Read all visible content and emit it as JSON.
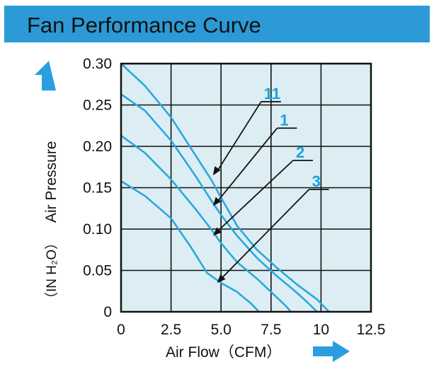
{
  "header": {
    "title": "Fan Performance Curve"
  },
  "colors": {
    "header_bg": "#2b9ad6",
    "curve": "#2aa7df",
    "plot_bg": "#dceef3",
    "label": "#1aa3e0",
    "arrow": "#2a9ee0"
  },
  "icons": {
    "y_axis_arrow": "arrow-up-icon",
    "x_axis_arrow": "arrow-right-icon"
  },
  "chart_data": {
    "type": "line",
    "ylabel": "Air Pressure",
    "ylabel_unit": "（IN H₂O）",
    "xlabel": "Air Flow（CFM）",
    "xlim": [
      0,
      12.5
    ],
    "ylim": [
      0,
      0.3
    ],
    "x_ticks": [
      "0",
      "2.5",
      "5.0",
      "7.5",
      "10",
      "12.5"
    ],
    "y_ticks": [
      "0",
      "0.05",
      "0.10",
      "0.15",
      "0.20",
      "0.25",
      "0.30"
    ],
    "x_tick_values": [
      0,
      2.5,
      5.0,
      7.5,
      10,
      12.5
    ],
    "y_tick_values": [
      0,
      0.05,
      0.1,
      0.15,
      0.2,
      0.25,
      0.3
    ],
    "grid": true,
    "series": [
      {
        "name": "11",
        "points": [
          [
            0,
            0.3
          ],
          [
            1.2,
            0.273
          ],
          [
            2.5,
            0.235
          ],
          [
            3.7,
            0.19
          ],
          [
            4.5,
            0.16
          ],
          [
            5.0,
            0.138
          ],
          [
            5.8,
            0.104
          ],
          [
            6.8,
            0.075
          ],
          [
            7.8,
            0.053
          ],
          [
            8.8,
            0.033
          ],
          [
            9.8,
            0.015
          ],
          [
            10.4,
            0
          ]
        ]
      },
      {
        "name": "1",
        "points": [
          [
            0,
            0.263
          ],
          [
            1.2,
            0.243
          ],
          [
            2.5,
            0.207
          ],
          [
            3.7,
            0.165
          ],
          [
            4.5,
            0.135
          ],
          [
            5.0,
            0.117
          ],
          [
            5.8,
            0.092
          ],
          [
            6.8,
            0.065
          ],
          [
            7.8,
            0.043
          ],
          [
            8.6,
            0.027
          ],
          [
            9.3,
            0.012
          ],
          [
            9.8,
            0
          ]
        ]
      },
      {
        "name": "2",
        "points": [
          [
            0,
            0.213
          ],
          [
            1.2,
            0.192
          ],
          [
            2.5,
            0.16
          ],
          [
            3.7,
            0.125
          ],
          [
            4.5,
            0.1
          ],
          [
            5.0,
            0.083
          ],
          [
            5.8,
            0.06
          ],
          [
            6.8,
            0.04
          ],
          [
            7.5,
            0.024
          ],
          [
            8.2,
            0.008
          ],
          [
            8.5,
            0
          ]
        ]
      },
      {
        "name": "3",
        "points": [
          [
            0,
            0.158
          ],
          [
            1.2,
            0.14
          ],
          [
            2.5,
            0.113
          ],
          [
            3.5,
            0.078
          ],
          [
            4.3,
            0.047
          ],
          [
            5.0,
            0.035
          ],
          [
            5.8,
            0.024
          ],
          [
            6.5,
            0.01
          ],
          [
            6.9,
            0
          ]
        ]
      }
    ],
    "annotations": [
      {
        "text": "11",
        "curve_x": 4.6,
        "curve_y": 0.165,
        "label_x": 7.5,
        "label_y": 0.254
      },
      {
        "text": "1",
        "curve_x": 4.6,
        "curve_y": 0.128,
        "label_x": 8.3,
        "label_y": 0.222
      },
      {
        "text": "2",
        "curve_x": 4.6,
        "curve_y": 0.092,
        "label_x": 9.1,
        "label_y": 0.183
      },
      {
        "text": "3",
        "curve_x": 4.8,
        "curve_y": 0.035,
        "label_x": 9.9,
        "label_y": 0.148
      }
    ]
  }
}
